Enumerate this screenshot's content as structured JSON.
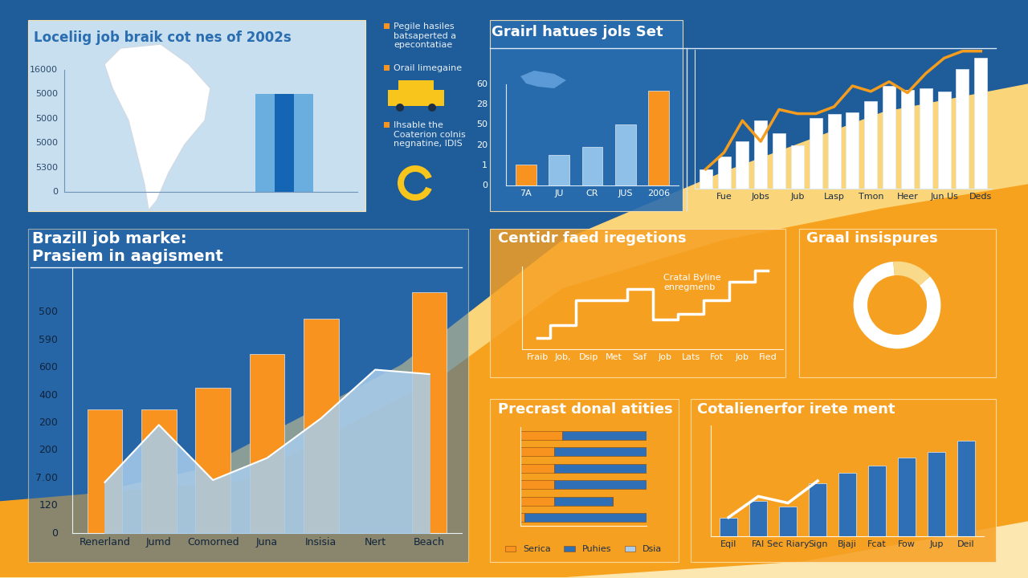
{
  "chart_data": [
    {
      "type": "bar",
      "title": "Loceliig job braik cot nes of 2002s",
      "y_tick_texts": [
        "16000",
        "5000",
        "5000",
        "5000",
        "5300",
        "0"
      ],
      "annotations": [
        "Pegile hasiles\nbatsaperted a\nepecontatiae",
        "Orail limegaine",
        "Ihsable the\nCoaterion colnis\nnegnatine, IDIS"
      ],
      "categories": [
        null,
        null,
        null
      ],
      "values": [
        80,
        80,
        80
      ],
      "colors": [
        "#6aaee0",
        "#1565b5",
        "#6aaee0"
      ],
      "ylim": [
        0,
        100
      ],
      "yticks": [],
      "tick_labels": false
    },
    {
      "type": "bar",
      "title": "Grairl hatues jols Set",
      "y_tick_texts": [
        "60",
        "28",
        "50",
        "20",
        "1",
        "0"
      ],
      "categories": [
        "7A",
        "JU",
        "CR",
        "JUS",
        "2006"
      ],
      "values": [
        21,
        30,
        38,
        60,
        94
      ],
      "colors": [
        "#f7931e",
        "#8fc1e8",
        "#8fc1e8",
        "#8fc1e8",
        "#f7931e"
      ],
      "ylim": [
        0,
        100
      ],
      "yticks": [],
      "tick_labels": "x"
    },
    {
      "type": "bar",
      "categories": [
        null,
        "Fue",
        null,
        "Jobs",
        null,
        "Jub",
        null,
        "Lasp",
        null,
        "Tmon",
        null,
        "Heer",
        null,
        "Jun Us",
        null,
        "Deds"
      ],
      "series": [
        {
          "type": "bar",
          "color": "#ffffff",
          "values": [
            14,
            23,
            34,
            49,
            40,
            31,
            51,
            54,
            55,
            63,
            74,
            71,
            72,
            70,
            86,
            94
          ]
        },
        {
          "type": "line",
          "color": "#f39c1e",
          "values": [
            14,
            26,
            49,
            34,
            57,
            54,
            54,
            59,
            74,
            70,
            77,
            69,
            83,
            94,
            99,
            99
          ]
        }
      ],
      "ylim": [
        0,
        100
      ],
      "yticks": [],
      "tick_labels": "x"
    },
    {
      "type": "bar",
      "title": "Brazill job marke:\nPrasiem in aagisment",
      "y_tick_texts": [
        "500",
        "590",
        "600",
        "400",
        "200",
        "200",
        "7.00",
        "120",
        "0"
      ],
      "categories": [
        "Renerland",
        "Jumd",
        "Comorned",
        "Juna",
        "Insisia",
        "Nert",
        "Beach"
      ],
      "series": [
        {
          "type": "bar",
          "color": "#f7931e",
          "values": [
            56,
            56,
            66,
            81,
            97,
            null,
            109
          ]
        },
        {
          "type": "area",
          "color": "#a9cdec",
          "values": [
            23,
            49,
            24,
            34,
            52,
            74,
            72
          ]
        }
      ],
      "ylim": [
        0,
        120
      ],
      "yticks": [],
      "tick_labels": "x"
    },
    {
      "type": "line",
      "title": "Centidr faed iregetions",
      "annotations": [
        "Cratal Byline\nenregmenb"
      ],
      "categories": [
        "Fraib",
        "Job,",
        "Dsip",
        "Met",
        "Saf",
        "Job",
        "Lats",
        "Fot",
        "Job",
        "Fied"
      ],
      "values": [
        14,
        29,
        59,
        59,
        73,
        36,
        43,
        59,
        82,
        95
      ],
      "color": "#ffffff",
      "line_style": "steps",
      "ylim": [
        0,
        100
      ],
      "yticks": [],
      "tick_labels": "x"
    },
    {
      "type": "pie",
      "title": "Graal insispures",
      "values": [
        85,
        15
      ],
      "colors": [
        "#ffffff",
        "#f9d98a"
      ]
    },
    {
      "type": "bar",
      "title": "Precrast donal atities",
      "orientation": "horizontal",
      "stacked": true,
      "categories": [
        null,
        null,
        null,
        null,
        null,
        null
      ],
      "series": [
        {
          "name": "Serica",
          "color": "#f7931e",
          "values": [
            33,
            27,
            27,
            27,
            27,
            3
          ]
        },
        {
          "name": "Puhies",
          "color": "#2f6fb5",
          "values": [
            67,
            73,
            73,
            73,
            46,
            97
          ]
        },
        {
          "name": "Dsia",
          "color": "#a9cdec",
          "values": [
            0,
            0,
            0,
            0,
            0,
            0
          ]
        }
      ],
      "legend": "lower center",
      "xlim": [
        0,
        100
      ],
      "xticks": [],
      "tick_labels": false
    },
    {
      "type": "bar",
      "title": "Cotalienerfor irete ment",
      "categories": [
        "Eqil",
        "FAI",
        "Sec Riary",
        "Sign",
        "Bjaji",
        "Fcat",
        "Fow",
        "Jup",
        "Deil"
      ],
      "series": [
        {
          "type": "bar",
          "color": "#2f6fb5",
          "values": [
            17,
            32,
            27,
            48,
            57,
            64,
            71,
            76,
            86
          ]
        },
        {
          "type": "line",
          "color": "#ffffff",
          "values": [
            17,
            36,
            30,
            50,
            null,
            null,
            null,
            null,
            null
          ]
        }
      ],
      "ylim": [
        0,
        100
      ],
      "yticks": [],
      "tick_labels": "x"
    }
  ]
}
